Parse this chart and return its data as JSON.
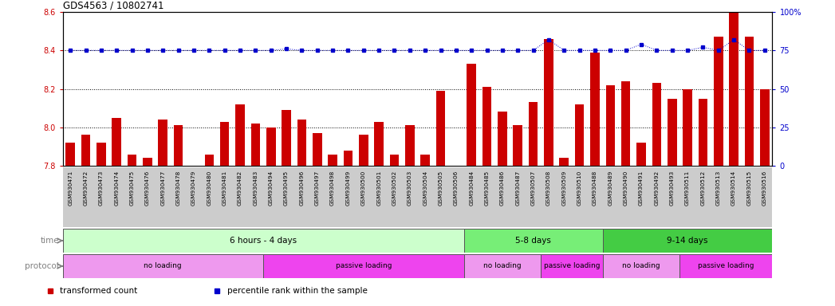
{
  "title": "GDS4563 / 10802741",
  "samples": [
    "GSM930471",
    "GSM930472",
    "GSM930473",
    "GSM930474",
    "GSM930475",
    "GSM930476",
    "GSM930477",
    "GSM930478",
    "GSM930479",
    "GSM930480",
    "GSM930481",
    "GSM930482",
    "GSM930483",
    "GSM930494",
    "GSM930495",
    "GSM930496",
    "GSM930497",
    "GSM930498",
    "GSM930499",
    "GSM930500",
    "GSM930501",
    "GSM930502",
    "GSM930503",
    "GSM930504",
    "GSM930505",
    "GSM930506",
    "GSM930484",
    "GSM930485",
    "GSM930486",
    "GSM930487",
    "GSM930507",
    "GSM930508",
    "GSM930509",
    "GSM930510",
    "GSM930488",
    "GSM930489",
    "GSM930490",
    "GSM930491",
    "GSM930492",
    "GSM930493",
    "GSM930511",
    "GSM930512",
    "GSM930513",
    "GSM930514",
    "GSM930515",
    "GSM930516"
  ],
  "bar_values": [
    7.92,
    7.96,
    7.92,
    8.05,
    7.86,
    7.84,
    8.04,
    8.01,
    7.78,
    7.86,
    8.03,
    8.12,
    8.02,
    8.0,
    8.09,
    8.04,
    7.97,
    7.86,
    7.88,
    7.96,
    8.03,
    7.86,
    8.01,
    7.86,
    8.19,
    7.8,
    8.33,
    8.21,
    8.08,
    8.01,
    8.13,
    8.46,
    7.84,
    8.12,
    8.39,
    8.22,
    8.24,
    7.92,
    8.23,
    8.15,
    8.2,
    8.15,
    8.47,
    8.6,
    8.47,
    8.2
  ],
  "percentile_values": [
    75,
    75,
    75,
    75,
    75,
    75,
    75,
    75,
    75,
    75,
    75,
    75,
    75,
    75,
    76,
    75,
    75,
    75,
    75,
    75,
    75,
    75,
    75,
    75,
    75,
    75,
    75,
    75,
    75,
    75,
    75,
    82,
    75,
    75,
    75,
    75,
    75,
    79,
    75,
    75,
    75,
    77,
    75,
    82,
    75,
    75
  ],
  "ylim": [
    7.8,
    8.6
  ],
  "y_ticks": [
    7.8,
    8.0,
    8.2,
    8.4,
    8.6
  ],
  "right_ylim": [
    0,
    100
  ],
  "right_yticks": [
    0,
    25,
    50,
    75,
    100
  ],
  "bar_color": "#cc0000",
  "dot_color": "#0000cc",
  "grid_color": "#000000",
  "xtick_bg_color": "#cccccc",
  "time_groups": [
    {
      "label": "6 hours - 4 days",
      "start": 0,
      "end": 26,
      "color": "#ccffcc"
    },
    {
      "label": "5-8 days",
      "start": 26,
      "end": 35,
      "color": "#77ee77"
    },
    {
      "label": "9-14 days",
      "start": 35,
      "end": 46,
      "color": "#44cc44"
    }
  ],
  "protocol_groups": [
    {
      "label": "no loading",
      "start": 0,
      "end": 13,
      "color": "#ee99ee"
    },
    {
      "label": "passive loading",
      "start": 13,
      "end": 26,
      "color": "#ee44ee"
    },
    {
      "label": "no loading",
      "start": 26,
      "end": 31,
      "color": "#ee99ee"
    },
    {
      "label": "passive loading",
      "start": 31,
      "end": 35,
      "color": "#ee44ee"
    },
    {
      "label": "no loading",
      "start": 35,
      "end": 40,
      "color": "#ee99ee"
    },
    {
      "label": "passive loading",
      "start": 40,
      "end": 46,
      "color": "#ee44ee"
    }
  ],
  "legend_items": [
    {
      "label": "transformed count",
      "color": "#cc0000",
      "marker": "s"
    },
    {
      "label": "percentile rank within the sample",
      "color": "#0000cc",
      "marker": "s"
    }
  ],
  "background_color": "#ffffff",
  "plot_bg_color": "#ffffff"
}
